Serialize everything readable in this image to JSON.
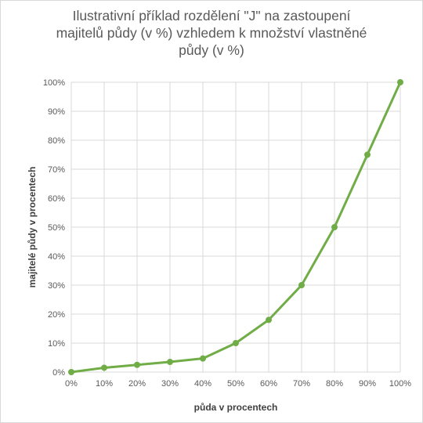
{
  "chart_data": {
    "type": "line",
    "title": "Ilustrativní příklad rozdělení \"J\" na zastoupení majitelů půdy (v %) vzhledem k množství vlastněné půdy (v %)",
    "title_lines": [
      "Ilustrativní příklad rozdělení \"J\" na zastoupení",
      "majitelů půdy (v %) vzhledem k množství vlastněné",
      "půdy (v %)"
    ],
    "xlabel": "půda v procentech",
    "ylabel": "majitelé půdy v procentech",
    "x": [
      0,
      10,
      20,
      30,
      40,
      50,
      60,
      70,
      80,
      90,
      100
    ],
    "x_tick_labels": [
      "0%",
      "10%",
      "20%",
      "30%",
      "40%",
      "50%",
      "60%",
      "70%",
      "80%",
      "90%",
      "100%"
    ],
    "y_tick_values": [
      0,
      10,
      20,
      30,
      40,
      50,
      60,
      70,
      80,
      90,
      100
    ],
    "y_tick_labels": [
      "0%",
      "10%",
      "20%",
      "30%",
      "40%",
      "50%",
      "60%",
      "70%",
      "80%",
      "90%",
      "100%"
    ],
    "series": [
      {
        "values": [
          0,
          1.5,
          2.5,
          3.5,
          4.7,
          10,
          18,
          30,
          50,
          75,
          100
        ]
      }
    ],
    "xlim": [
      0,
      100
    ],
    "ylim": [
      0,
      100
    ],
    "grid": true,
    "legend": "none",
    "colors": {
      "line": "#70ad47",
      "grid": "#d9d9d9",
      "tick_text": "#595959",
      "title": "#595959"
    }
  }
}
